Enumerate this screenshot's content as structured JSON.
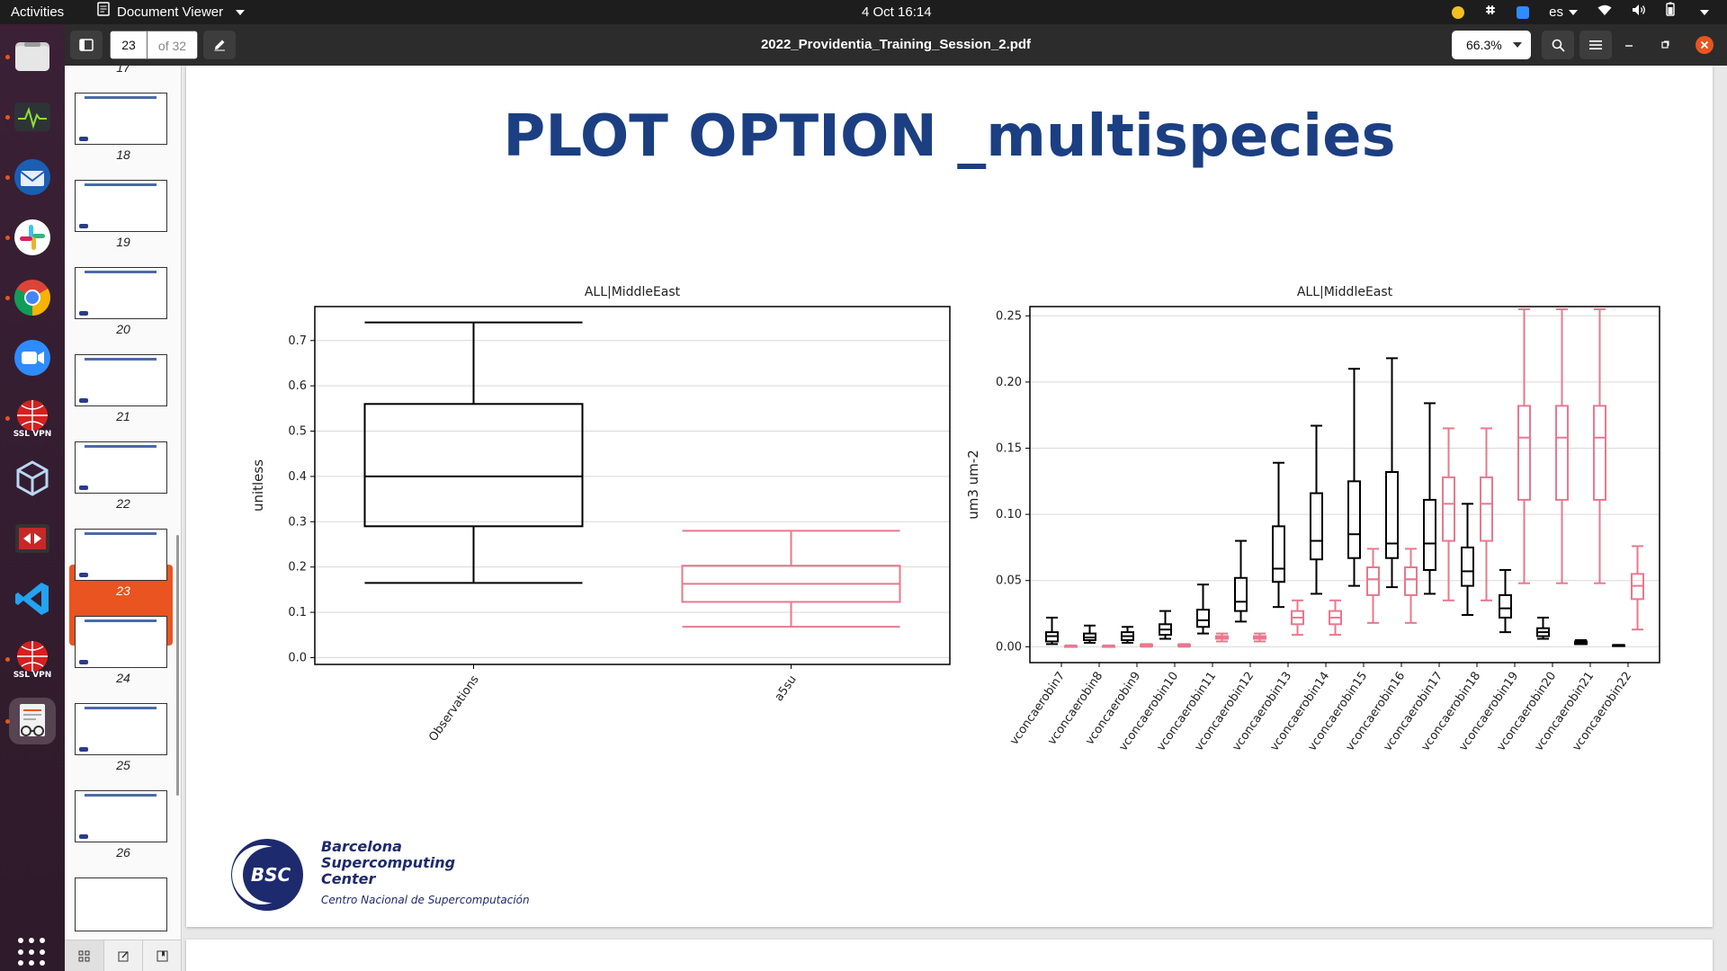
{
  "topbar": {
    "activities": "Activities",
    "app_name": "Document Viewer",
    "clock": "4 Oct  16:14",
    "keyboard_layout": "es"
  },
  "dock": {
    "items": [
      "files-icon",
      "system-monitor-icon",
      "thunderbird-icon",
      "slack-icon",
      "chrome-icon",
      "zoom-icon",
      "ssl-vpn-icon",
      "virtualbox-icon",
      "remote-desktop-icon",
      "vscode-icon",
      "ssl-vpn-icon-2",
      "document-viewer-icon"
    ],
    "ssl_label": "SSL VPN"
  },
  "header": {
    "page_value": "23",
    "page_total": "of 32",
    "title": "2022_Providentia_Training_Session_2.pdf",
    "zoom": "66.3%"
  },
  "sidebar": {
    "partial_top_number": "17",
    "pages": [
      "18",
      "19",
      "20",
      "21",
      "22",
      "23",
      "24",
      "25",
      "26"
    ],
    "selected": "23"
  },
  "slide": {
    "title": "PLOT OPTION _multispecies",
    "logo": {
      "badge": "BSC",
      "line1": "Barcelona",
      "line2": "Supercomputing",
      "line3": "Center",
      "subtitle": "Centro Nacional de Supercomputación"
    }
  },
  "chart_data": [
    {
      "type": "box",
      "title": "ALL|MiddleEast",
      "ylabel": "unitless",
      "ylim": [
        -0.015,
        0.775
      ],
      "yticks": [
        "0.0",
        "0.1",
        "0.2",
        "0.3",
        "0.4",
        "0.5",
        "0.6",
        "0.7"
      ],
      "categories": [
        "Observations",
        "a5su"
      ],
      "boxes": [
        {
          "min": 0.165,
          "q1": 0.29,
          "median": 0.4,
          "q3": 0.56,
          "max": 0.74,
          "color": "#000000"
        },
        {
          "min": 0.068,
          "q1": 0.123,
          "median": 0.163,
          "q3": 0.203,
          "max": 0.28,
          "color": "#e8788e"
        }
      ]
    },
    {
      "type": "box",
      "title": "ALL|MiddleEast",
      "ylabel": "um3 um-2",
      "ylim": [
        -0.012,
        0.257
      ],
      "yticks": [
        "0.00",
        "0.05",
        "0.10",
        "0.15",
        "0.20",
        "0.25"
      ],
      "categories": [
        "vconcaerobin7",
        "vconcaerobin8",
        "vconcaerobin9",
        "vconcaerobin10",
        "vconcaerobin11",
        "vconcaerobin12",
        "vconcaerobin13",
        "vconcaerobin14",
        "vconcaerobin15",
        "vconcaerobin16",
        "vconcaerobin17",
        "vconcaerobin18",
        "vconcaerobin19",
        "vconcaerobin20",
        "vconcaerobin21",
        "vconcaerobin22"
      ],
      "series": [
        {
          "color": "#000000",
          "boxes": [
            {
              "min": 0.002,
              "q1": 0.004,
              "median": 0.008,
              "q3": 0.011,
              "max": 0.022
            },
            {
              "min": 0.003,
              "q1": 0.005,
              "median": 0.007,
              "q3": 0.01,
              "max": 0.016
            },
            {
              "min": 0.003,
              "q1": 0.005,
              "median": 0.008,
              "q3": 0.011,
              "max": 0.015
            },
            {
              "min": 0.006,
              "q1": 0.009,
              "median": 0.013,
              "q3": 0.017,
              "max": 0.027
            },
            {
              "min": 0.01,
              "q1": 0.015,
              "median": 0.02,
              "q3": 0.028,
              "max": 0.047
            },
            {
              "min": 0.019,
              "q1": 0.027,
              "median": 0.034,
              "q3": 0.052,
              "max": 0.08
            },
            {
              "min": 0.03,
              "q1": 0.049,
              "median": 0.059,
              "q3": 0.091,
              "max": 0.139
            },
            {
              "min": 0.04,
              "q1": 0.066,
              "median": 0.08,
              "q3": 0.116,
              "max": 0.167
            },
            {
              "min": 0.046,
              "q1": 0.067,
              "median": 0.085,
              "q3": 0.125,
              "max": 0.21
            },
            {
              "min": 0.045,
              "q1": 0.067,
              "median": 0.078,
              "q3": 0.132,
              "max": 0.218
            },
            {
              "min": 0.04,
              "q1": 0.058,
              "median": 0.078,
              "q3": 0.111,
              "max": 0.184
            },
            {
              "min": 0.024,
              "q1": 0.046,
              "median": 0.057,
              "q3": 0.075,
              "max": 0.108
            },
            {
              "min": 0.011,
              "q1": 0.022,
              "median": 0.029,
              "q3": 0.039,
              "max": 0.058
            },
            {
              "min": 0.006,
              "q1": 0.008,
              "median": 0.011,
              "q3": 0.014,
              "max": 0.022
            },
            {
              "min": 0.002,
              "q1": 0.002,
              "median": 0.003,
              "q3": 0.004,
              "max": 0.005
            },
            {
              "min": 0.0005,
              "q1": 0.0007,
              "median": 0.001,
              "q3": 0.0012,
              "max": 0.0014
            }
          ]
        },
        {
          "color": "#e8788e",
          "boxes": [
            {
              "min": 0.0,
              "q1": 0.0,
              "median": 0.0,
              "q3": 0.0005,
              "max": 0.001
            },
            {
              "min": 0.0,
              "q1": 0.0,
              "median": 0.0,
              "q3": 0.0005,
              "max": 0.001
            },
            {
              "min": 0.0,
              "q1": 0.0005,
              "median": 0.001,
              "q3": 0.0015,
              "max": 0.002
            },
            {
              "min": 0.0,
              "q1": 0.0005,
              "median": 0.001,
              "q3": 0.0015,
              "max": 0.002
            },
            {
              "min": 0.004,
              "q1": 0.006,
              "median": 0.007,
              "q3": 0.008,
              "max": 0.01
            },
            {
              "min": 0.004,
              "q1": 0.006,
              "median": 0.007,
              "q3": 0.008,
              "max": 0.01
            },
            {
              "min": 0.009,
              "q1": 0.017,
              "median": 0.022,
              "q3": 0.027,
              "max": 0.035
            },
            {
              "min": 0.009,
              "q1": 0.017,
              "median": 0.022,
              "q3": 0.027,
              "max": 0.035
            },
            {
              "min": 0.018,
              "q1": 0.039,
              "median": 0.051,
              "q3": 0.06,
              "max": 0.074
            },
            {
              "min": 0.018,
              "q1": 0.039,
              "median": 0.051,
              "q3": 0.06,
              "max": 0.074
            },
            {
              "min": 0.035,
              "q1": 0.08,
              "median": 0.108,
              "q3": 0.128,
              "max": 0.165
            },
            {
              "min": 0.035,
              "q1": 0.08,
              "median": 0.108,
              "q3": 0.128,
              "max": 0.165
            },
            {
              "min": 0.048,
              "q1": 0.111,
              "median": 0.158,
              "q3": 0.182,
              "max": 0.255
            },
            {
              "min": 0.048,
              "q1": 0.111,
              "median": 0.158,
              "q3": 0.182,
              "max": 0.255
            },
            {
              "min": 0.048,
              "q1": 0.111,
              "median": 0.158,
              "q3": 0.182,
              "max": 0.255
            },
            {
              "min": 0.013,
              "q1": 0.036,
              "median": 0.046,
              "q3": 0.055,
              "max": 0.076
            }
          ]
        }
      ]
    }
  ]
}
